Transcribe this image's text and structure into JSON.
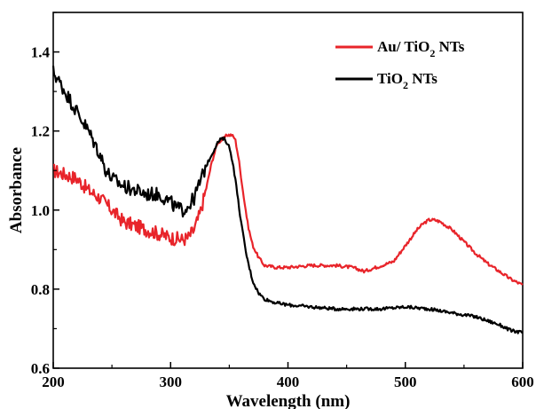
{
  "chart_data": {
    "type": "line",
    "xlabel": "Wavelength (nm)",
    "ylabel": "Absorbance",
    "xlim": [
      200,
      600
    ],
    "ylim": [
      0.6,
      1.5
    ],
    "xticks": [
      "200",
      "300",
      "400",
      "500",
      "600"
    ],
    "yticks": [
      "0.6",
      "0.8",
      "1.0",
      "1.2",
      "1.4"
    ],
    "legend_position": "top-right",
    "series": [
      {
        "name": "Au/ TiO2 NTs",
        "legend_parts": [
          "Au/ TiO",
          "2",
          " NTs"
        ],
        "color": "#e8242a",
        "x": [
          200,
          210,
          220,
          230,
          240,
          250,
          260,
          270,
          280,
          290,
          300,
          310,
          315,
          320,
          325,
          330,
          335,
          340,
          345,
          348,
          352,
          355,
          358,
          362,
          366,
          370,
          375,
          380,
          390,
          400,
          420,
          440,
          455,
          465,
          470,
          480,
          490,
          500,
          505,
          510,
          515,
          520,
          525,
          530,
          540,
          550,
          560,
          570,
          580,
          590,
          600
        ],
        "y": [
          1.1,
          1.09,
          1.08,
          1.05,
          1.03,
          1.0,
          0.97,
          0.96,
          0.95,
          0.94,
          0.93,
          0.925,
          0.93,
          0.95,
          0.99,
          1.05,
          1.12,
          1.17,
          1.18,
          1.19,
          1.19,
          1.18,
          1.13,
          1.04,
          0.96,
          0.91,
          0.88,
          0.86,
          0.855,
          0.855,
          0.86,
          0.86,
          0.855,
          0.845,
          0.85,
          0.86,
          0.87,
          0.91,
          0.93,
          0.95,
          0.965,
          0.975,
          0.975,
          0.97,
          0.95,
          0.92,
          0.89,
          0.865,
          0.845,
          0.825,
          0.81
        ]
      },
      {
        "name": "TiO2 NTs",
        "legend_parts": [
          "TiO",
          "2",
          " NTs"
        ],
        "color": "#000000",
        "x": [
          200,
          210,
          220,
          230,
          240,
          245,
          250,
          260,
          270,
          280,
          290,
          295,
          300,
          305,
          310,
          315,
          320,
          325,
          330,
          335,
          340,
          343,
          346,
          350,
          353,
          356,
          360,
          365,
          370,
          375,
          380,
          390,
          400,
          420,
          440,
          460,
          480,
          500,
          520,
          540,
          560,
          580,
          590,
          600
        ],
        "y": [
          1.35,
          1.3,
          1.25,
          1.2,
          1.14,
          1.1,
          1.08,
          1.06,
          1.05,
          1.04,
          1.04,
          1.03,
          1.02,
          1.005,
          1.0,
          1.01,
          1.03,
          1.07,
          1.11,
          1.14,
          1.17,
          1.18,
          1.18,
          1.16,
          1.12,
          1.06,
          0.97,
          0.88,
          0.82,
          0.79,
          0.775,
          0.765,
          0.76,
          0.755,
          0.75,
          0.75,
          0.75,
          0.755,
          0.75,
          0.74,
          0.73,
          0.71,
          0.695,
          0.69
        ]
      }
    ]
  }
}
